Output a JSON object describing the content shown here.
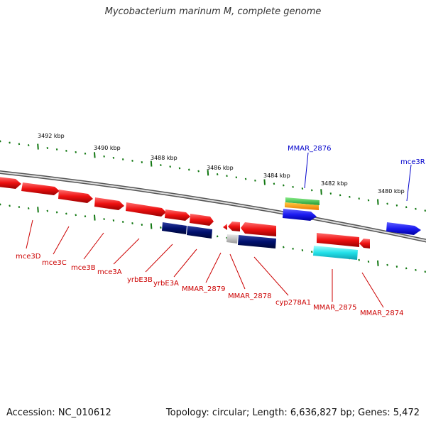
{
  "title": "Mycobacterium marinum M, complete genome",
  "footer": {
    "accession": "Accession: NC_010612",
    "summary": "Topology: circular; Length: 6,636,827 bp; Genes: 5,472"
  },
  "colors": {
    "gene_red": "#ee1111",
    "gene_navy": "#00106e",
    "gene_blue": "#1a1af0",
    "gene_cyan": "#22e0e8",
    "gene_green": "#33bb44",
    "gene_orange": "#ff8800",
    "gene_gray": "#bbbbbb",
    "tick_green": "#117711",
    "axis": "#777777",
    "label_red": "#cc0000",
    "label_blue": "#0000cc"
  },
  "scale_labels": [
    "3492 kbp",
    "3490 kbp",
    "3488 kbp",
    "3486 kbp",
    "3484 kbp",
    "3482 kbp",
    "3480 kbp"
  ],
  "gene_labels": [
    "mce3D",
    "mce3C",
    "mce3B",
    "mce3A",
    "yrbE3B",
    "yrbE3A",
    "MMAR_2879",
    "MMAR_2878",
    "cyp278A1",
    "MMAR_2875",
    "MMAR_2874",
    "MMAR_2876",
    "mce3R"
  ]
}
